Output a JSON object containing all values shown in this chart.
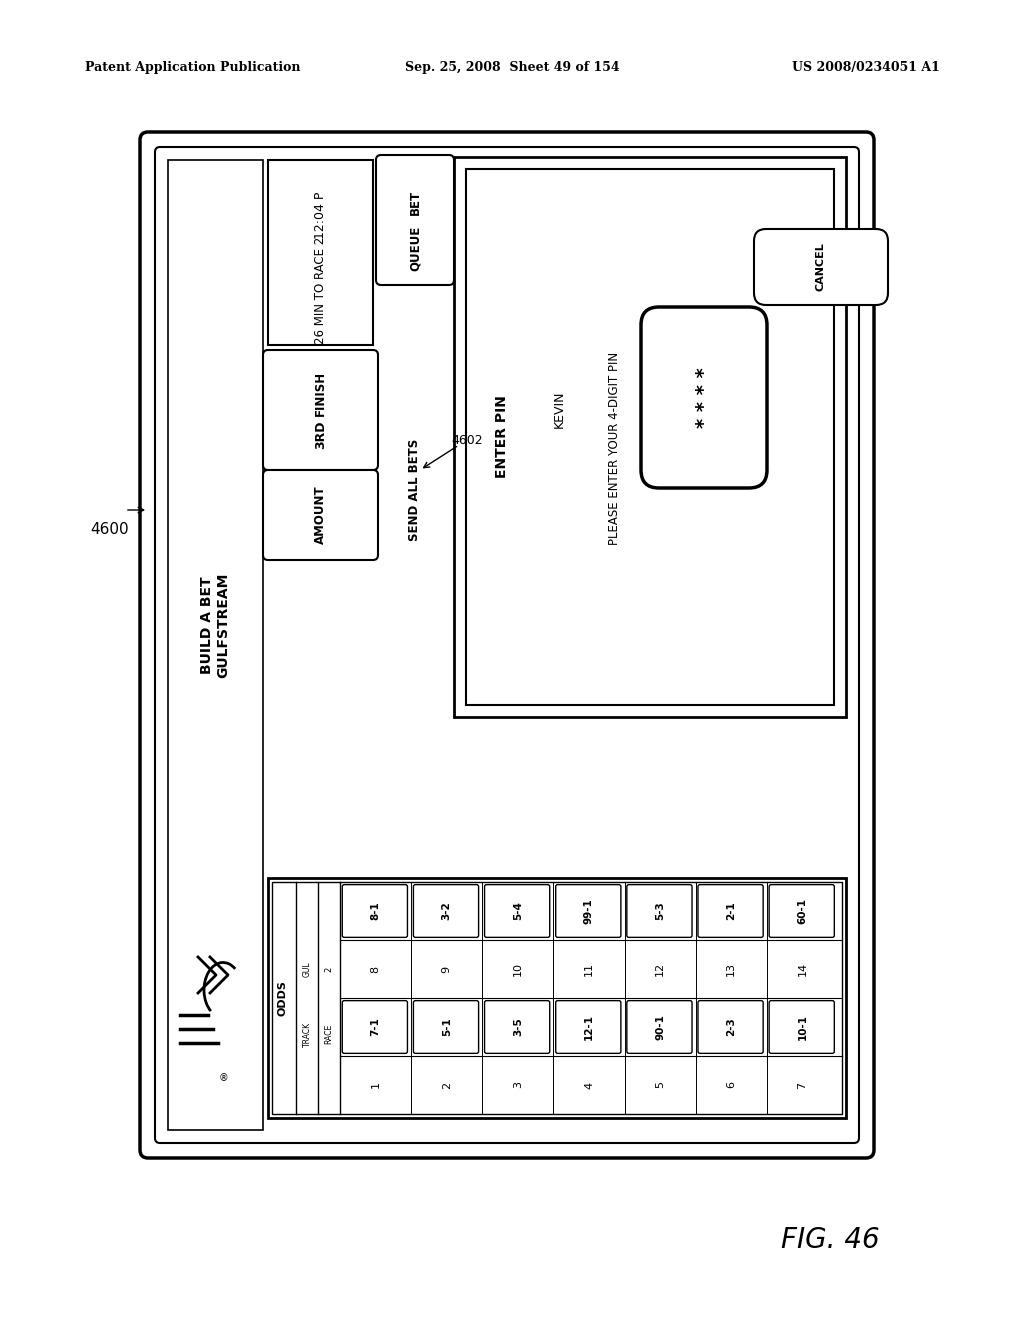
{
  "header_left": "Patent Application Publication",
  "header_mid": "Sep. 25, 2008  Sheet 49 of 154",
  "header_right": "US 2008/0234051 A1",
  "fig_label": "FIG. 46",
  "label_4600": "4600",
  "label_4602": "4602",
  "title_text1": "BUILD A BET",
  "title_text2": "GULFSTREAM",
  "time_text": "12:04 P",
  "race_text": "26 MIN TO RACE 2",
  "finish_label": "FINISH",
  "finish_val": "3RD",
  "amount_label": "AMOUNT",
  "bet_queue_label1": "BET",
  "bet_queue_label2": "QUEUE",
  "send_all_bets": "SEND ALL BETS",
  "enter_pin": "ENTER PIN",
  "kevin": "KEVIN",
  "please_enter": "PLEASE ENTER YOUR 4-DIGIT PIN",
  "cancel": "CANCEL",
  "stars": "* * * *",
  "odds_label": "ODDS",
  "track_label": "TRACK",
  "gul_label": "GUL",
  "race_label": "RACE",
  "race_num": "2",
  "horse_nums_bottom": [
    "1",
    "2",
    "3",
    "4",
    "5",
    "6",
    "7"
  ],
  "horse_nums_top": [
    "8",
    "9",
    "10",
    "11",
    "12",
    "13",
    "14"
  ],
  "track_gul_odds": [
    "7-1",
    "5-1",
    "3-5",
    "12-1",
    "90-1",
    "2-3",
    "10-1"
  ],
  "race2_odds": [
    "8-1",
    "3-2",
    "5-4",
    "99-1",
    "5-3",
    "2-1",
    "60-1"
  ],
  "bg_color": "#ffffff"
}
